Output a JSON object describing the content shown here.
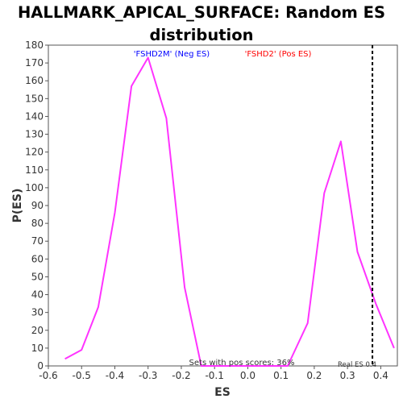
{
  "chart_data": {
    "type": "line",
    "title_line1": "HALLMARK_APICAL_SURFACE: Random ES",
    "title_line2": "distribution",
    "xlabel": "ES",
    "ylabel": "P(ES)",
    "xlim": [
      -0.6,
      0.45
    ],
    "ylim": [
      0,
      180
    ],
    "x_ticks": [
      "-0.6",
      "-0.5",
      "-0.4",
      "-0.3",
      "-0.2",
      "-0.1",
      "0.0",
      "0.1",
      "0.2",
      "0.3",
      "0.4"
    ],
    "y_ticks": [
      "0",
      "10",
      "20",
      "30",
      "40",
      "50",
      "60",
      "70",
      "80",
      "90",
      "100",
      "110",
      "120",
      "130",
      "140",
      "150",
      "160",
      "170",
      "180"
    ],
    "grid": false,
    "series": [
      {
        "color": "#ff33ff",
        "x": [
          -0.55,
          -0.5,
          -0.45,
          -0.4,
          -0.35,
          -0.3,
          -0.245,
          -0.19,
          -0.14,
          -0.09,
          -0.04,
          0.01,
          0.06,
          0.12,
          0.18,
          0.23,
          0.28,
          0.33,
          0.385,
          0.44
        ],
        "y": [
          4,
          9,
          33,
          86,
          157,
          173,
          139,
          44,
          0,
          0,
          0,
          0,
          0,
          0,
          24,
          97,
          126,
          64,
          35,
          10
        ]
      }
    ],
    "real_es": {
      "x": 0.375,
      "label": "Real ES 0.4",
      "color": "#000000"
    },
    "annotations": {
      "neg_label": "'FSHD2M' (Neg ES)",
      "neg_color": "#0000ff",
      "pos_label": "'FSHD2' (Pos ES)",
      "pos_color": "#ff0000",
      "pos_scores": "Sets with pos scores: 36%"
    }
  }
}
